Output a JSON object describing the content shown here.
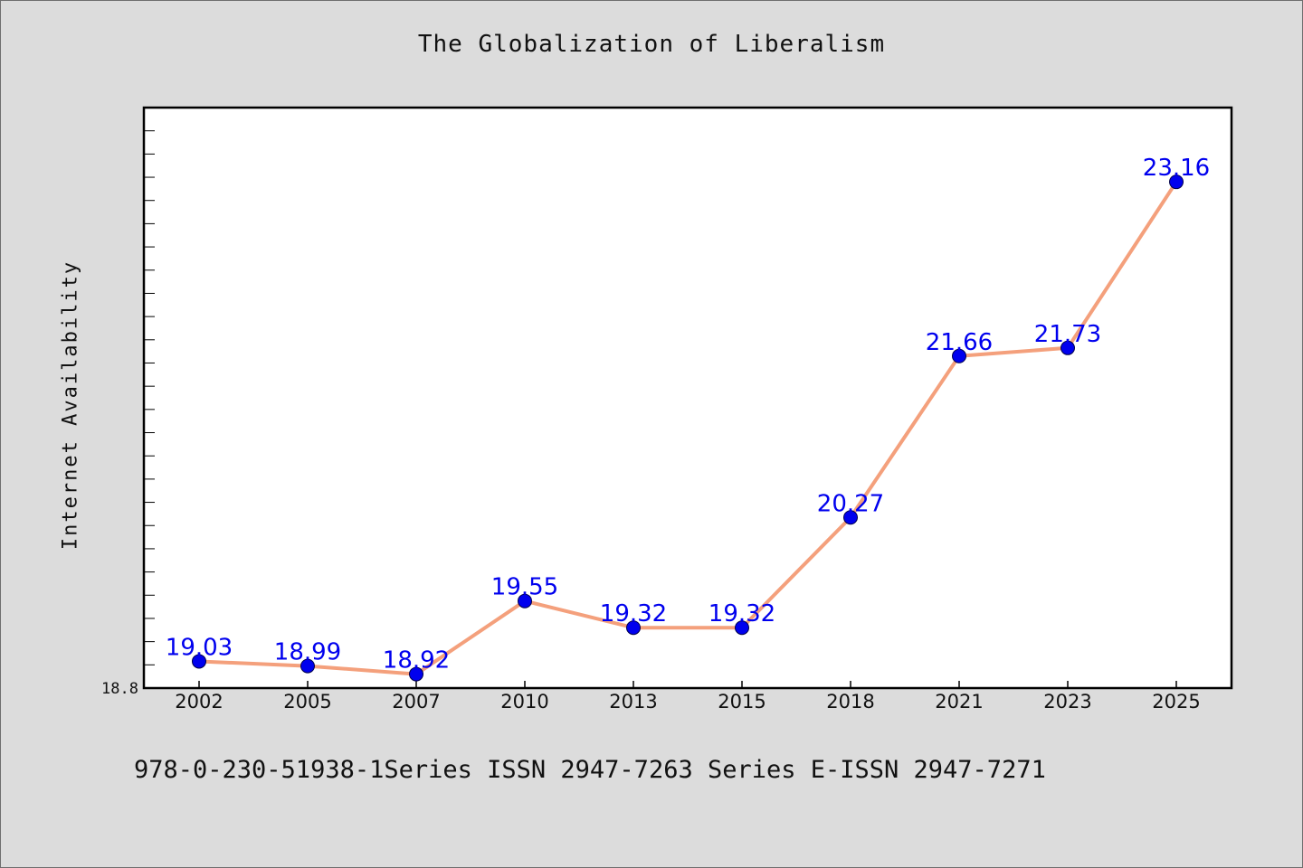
{
  "chart_data": {
    "type": "line",
    "title": "The Globalization of Liberalism",
    "xlabel": "",
    "ylabel": "Internet Availability",
    "categories": [
      "2002",
      "2005",
      "2007",
      "2010",
      "2013",
      "2015",
      "2018",
      "2021",
      "2023",
      "2025"
    ],
    "series": [
      {
        "values": [
          19.03,
          18.99,
          18.92,
          19.55,
          19.32,
          19.32,
          20.27,
          21.66,
          21.73,
          23.16
        ],
        "labels": [
          "19.03",
          "18.99",
          "18.92",
          "19.55",
          "19.32",
          "19.32",
          "20.27",
          "21.66",
          "21.73",
          "23.16"
        ]
      }
    ],
    "ylim": [
      18.8,
      23.8
    ],
    "y_tick_label": "18.8",
    "grid": false,
    "line_color": "#f4a07c",
    "marker_color": "#0000ee",
    "label_color": "#0000ee"
  },
  "caption": "978-0-230-51938-1Series ISSN 2947-7263 Series E-ISSN 2947-7271"
}
